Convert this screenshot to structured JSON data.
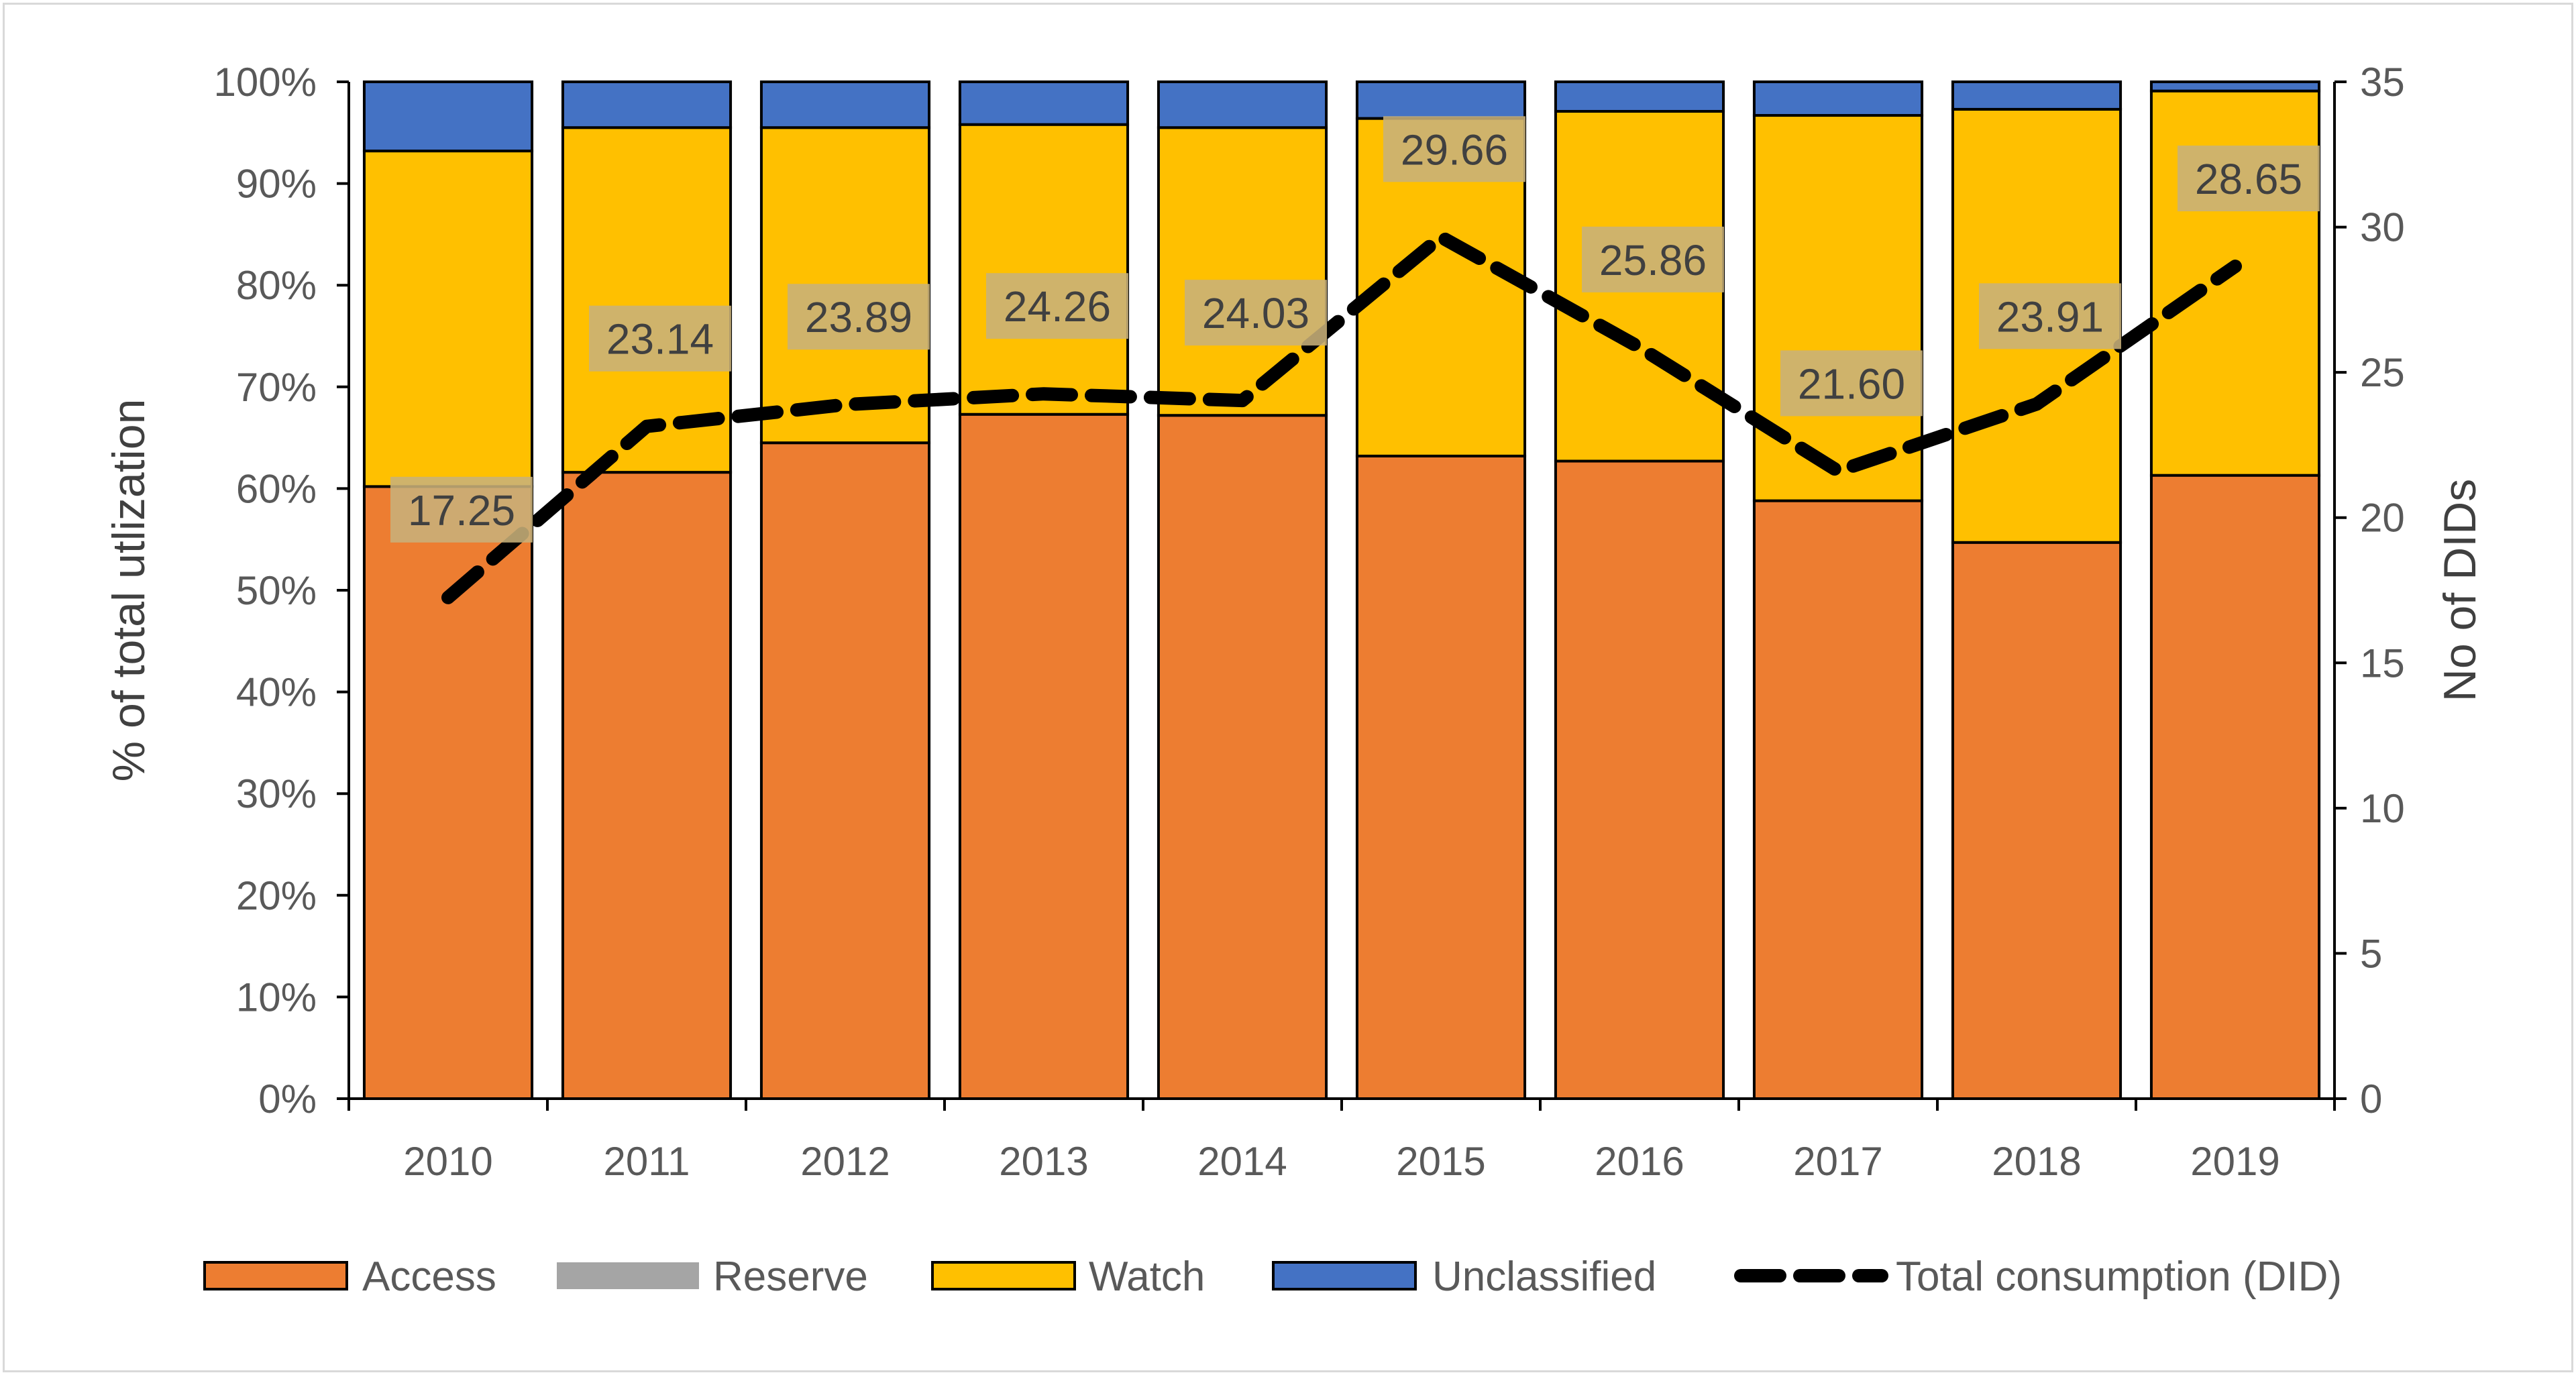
{
  "chart_data": {
    "type": "bar",
    "stacked": true,
    "percent_stacked": true,
    "categories": [
      "2010",
      "2011",
      "2012",
      "2013",
      "2014",
      "2015",
      "2016",
      "2017",
      "2018",
      "2019"
    ],
    "series": [
      {
        "name": "Access",
        "axis": "left",
        "color": "#ED7D31",
        "values": [
          60.2,
          61.6,
          64.5,
          67.3,
          67.2,
          63.2,
          62.7,
          58.8,
          54.7,
          61.3
        ]
      },
      {
        "name": "Reserve",
        "axis": "left",
        "color": "#A5A5A5",
        "values": [
          0,
          0,
          0,
          0,
          0,
          0,
          0,
          0,
          0,
          0
        ]
      },
      {
        "name": "Watch",
        "axis": "left",
        "color": "#FFC000",
        "values": [
          33.0,
          33.9,
          31.0,
          28.5,
          28.3,
          33.2,
          34.4,
          37.9,
          42.6,
          37.8
        ]
      },
      {
        "name": "Unclassified",
        "axis": "left",
        "color": "#4472C4",
        "values": [
          6.8,
          4.5,
          4.5,
          4.2,
          4.5,
          3.6,
          2.9,
          3.3,
          2.7,
          0.9
        ]
      },
      {
        "name": "Total consumption (DID)",
        "type": "line",
        "axis": "right",
        "color": "#000000",
        "dashed": true,
        "values": [
          17.25,
          23.14,
          23.89,
          24.26,
          24.03,
          29.66,
          25.86,
          21.6,
          23.91,
          28.65
        ],
        "data_labels": [
          "17.25",
          "23.14",
          "23.89",
          "24.26",
          "24.03",
          "29.66",
          "25.86",
          "21.60",
          "23.91",
          "28.65"
        ]
      }
    ],
    "ylabel": "% of total utlization",
    "y2label": "No of DIDs",
    "ylim": [
      0,
      100
    ],
    "y2lim": [
      0,
      35
    ],
    "yticks": [
      "0%",
      "10%",
      "20%",
      "30%",
      "40%",
      "50%",
      "60%",
      "70%",
      "80%",
      "90%",
      "100%"
    ],
    "y2ticks": [
      "0",
      "5",
      "10",
      "15",
      "20",
      "25",
      "30",
      "35"
    ],
    "legend_position": "bottom",
    "grid": false
  }
}
